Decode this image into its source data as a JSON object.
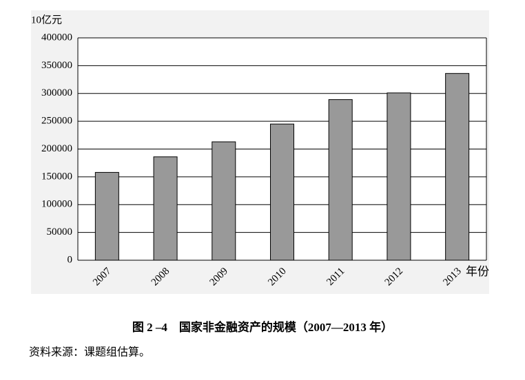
{
  "chart_data": {
    "type": "bar",
    "y_label": "10亿元",
    "x_label": "年份",
    "categories": [
      "2007",
      "2008",
      "2009",
      "2010",
      "2011",
      "2012",
      "2013"
    ],
    "values": [
      158000,
      186000,
      213000,
      245000,
      289000,
      301000,
      336000
    ],
    "color": "#999999",
    "ylim": [
      0,
      400000
    ],
    "yticks": [
      0,
      50000,
      100000,
      150000,
      200000,
      250000,
      300000,
      350000,
      400000
    ],
    "grid": true,
    "caption": "图 2 –4　国家非金融资产的规模（2007—2013 年）",
    "source": "资料来源：课题组估算。"
  }
}
